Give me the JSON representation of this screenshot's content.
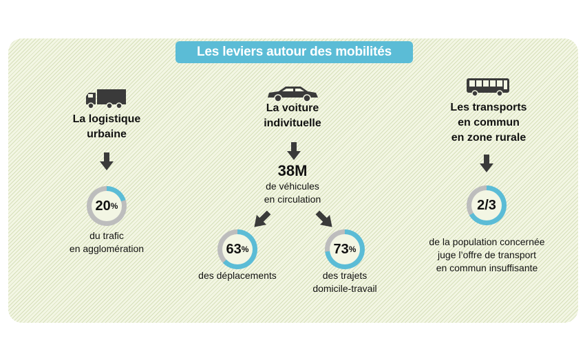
{
  "title": "Les leviers autour des mobilités",
  "colors": {
    "accent": "#5bbcd6",
    "ring_track": "#bdbdbd",
    "arrow": "#3a3a3a"
  },
  "columns": {
    "logistique": {
      "icon": "truck-icon",
      "heading_line1": "La logistique",
      "heading_line2": "urbaine",
      "stat_value": "20",
      "stat_unit": "%",
      "stat_fraction": 0.2,
      "caption_line1": "du trafic",
      "caption_line2": "en agglomération"
    },
    "voiture": {
      "icon": "car-icon",
      "heading_line1": "La voiture",
      "heading_line2": "indivituelle",
      "big_value": "38M",
      "big_caption_line1": "de véhicules",
      "big_caption_line2": "en circulation",
      "left": {
        "stat_value": "63",
        "stat_unit": "%",
        "stat_fraction": 0.63,
        "caption_line1": "des déplacements"
      },
      "right": {
        "stat_value": "73",
        "stat_unit": "%",
        "stat_fraction": 0.73,
        "caption_line1": "des trajets",
        "caption_line2": "domicile-travail"
      }
    },
    "transports": {
      "icon": "bus-icon",
      "heading_line1": "Les transports",
      "heading_line2": "en commun",
      "heading_line3": "en zone rurale",
      "stat_value": "2/3",
      "stat_fraction": 0.667,
      "caption_line1": "de la population concernée",
      "caption_line2": "juge l’offre de transport",
      "caption_line3": "en commun insuffisante"
    }
  }
}
